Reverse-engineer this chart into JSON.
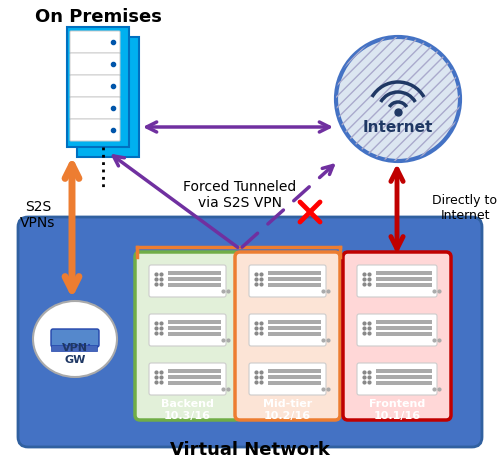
{
  "title": "Virtual Network",
  "on_premises_label": "On Premises",
  "internet_label": "Internet",
  "vpn_gw_label": "VPN\nGW",
  "s2s_label": "S2S\nVPNs",
  "directly_label": "Directly to\nInternet",
  "forced_label": "Forced Tunneled\nvia S2S VPN",
  "backend_label": "Backend\n10.3/16",
  "midtier_label": "Mid-tier\n10.2/16",
  "frontend_label": "Frontend\n10.1/16",
  "bg_color": "#ffffff",
  "vnet_fill": "#4472c4",
  "vnet_border": "#3060a0",
  "backend_fill": "#e2f0d9",
  "backend_border": "#70ad47",
  "midtier_fill": "#fce4d6",
  "midtier_border": "#ed7d31",
  "frontend_fill": "#ffd7d7",
  "frontend_border": "#c00000",
  "grouped_border": "#ed7d31",
  "internet_fill": "#dce6f1",
  "internet_border": "#4472c4",
  "internet_text": "#1f3864",
  "server_front": "#00b0f0",
  "server_back": "#0070c0",
  "server_unit": "#e8e8e8",
  "arrow_orange": "#ed7d31",
  "arrow_purple": "#7030a0",
  "arrow_red": "#c00000",
  "cross_color": "#ff0000",
  "dot_black": "#222222",
  "wifi_color": "#1f3864"
}
